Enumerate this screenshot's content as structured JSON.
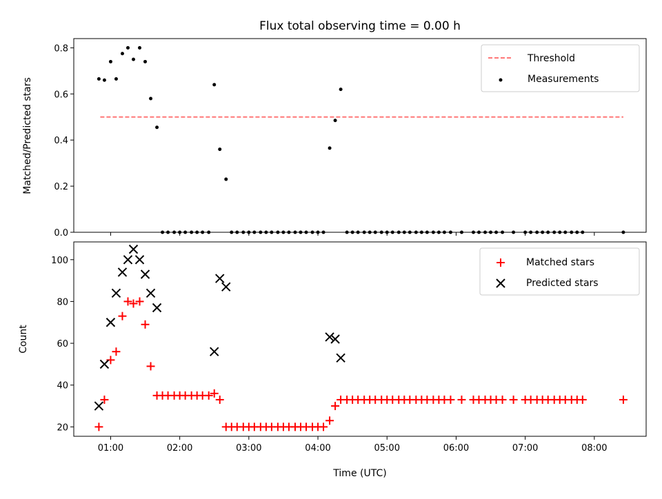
{
  "title": "Flux total observing time = 0.00 h",
  "xlabel": "Time (UTC)",
  "xticks": [
    "01:00",
    "02:00",
    "03:00",
    "04:00",
    "05:00",
    "06:00",
    "07:00",
    "08:00"
  ],
  "xticks_hours": [
    1,
    2,
    3,
    4,
    5,
    6,
    7,
    8
  ],
  "xlim": [
    0.4667,
    8.75
  ],
  "colors": {
    "threshold": "#ff7777",
    "measurement": "#000000",
    "matched": "#ff0000",
    "predicted": "#000000"
  },
  "chart_data": [
    {
      "type": "scatter",
      "ylabel": "Matched/Predicted stars",
      "ylim": [
        0,
        0.84
      ],
      "yticks": [
        "0.0",
        "0.2",
        "0.4",
        "0.6",
        "0.8"
      ],
      "yticks_values": [
        0,
        0.2,
        0.4,
        0.6,
        0.8
      ],
      "legend_position": "top-right",
      "threshold": {
        "name": "Threshold",
        "y": 0.5,
        "x_range": [
          0.85,
          8.42
        ]
      },
      "series": [
        {
          "name": "Measurements",
          "x": [
            0.83,
            0.91,
            1.0,
            1.08,
            1.17,
            1.25,
            1.33,
            1.42,
            1.5,
            1.58,
            1.67,
            1.75,
            1.83,
            1.92,
            2.0,
            2.08,
            2.17,
            2.25,
            2.33,
            2.42,
            2.5,
            2.58,
            2.67,
            2.75,
            2.83,
            2.92,
            3.0,
            3.08,
            3.17,
            3.25,
            3.33,
            3.42,
            3.5,
            3.58,
            3.67,
            3.75,
            3.83,
            3.92,
            4.0,
            4.08,
            4.17,
            4.25,
            4.33,
            4.42,
            4.5,
            4.58,
            4.67,
            4.75,
            4.83,
            4.92,
            5.0,
            5.08,
            5.17,
            5.25,
            5.33,
            5.42,
            5.5,
            5.58,
            5.67,
            5.75,
            5.83,
            5.92,
            6.08,
            6.25,
            6.33,
            6.42,
            6.5,
            6.58,
            6.67,
            6.83,
            7.0,
            7.08,
            7.17,
            7.25,
            7.33,
            7.42,
            7.5,
            7.58,
            7.67,
            7.75,
            7.83,
            8.42
          ],
          "y": [
            0.665,
            0.66,
            0.74,
            0.665,
            0.775,
            0.8,
            0.75,
            0.8,
            0.74,
            0.58,
            0.455,
            0,
            0,
            0,
            0,
            0,
            0,
            0,
            0,
            0,
            0.64,
            0.36,
            0.23,
            0,
            0,
            0,
            0,
            0,
            0,
            0,
            0,
            0,
            0,
            0,
            0,
            0,
            0,
            0,
            0,
            0,
            0.365,
            0.485,
            0.62,
            0,
            0,
            0,
            0,
            0,
            0,
            0,
            0,
            0,
            0,
            0,
            0,
            0,
            0,
            0,
            0,
            0,
            0,
            0,
            0,
            0,
            0,
            0,
            0,
            0,
            0,
            0,
            0,
            0,
            0,
            0,
            0,
            0,
            0,
            0,
            0,
            0,
            0,
            0
          ]
        }
      ]
    },
    {
      "type": "scatter",
      "ylabel": "Count",
      "ylim": [
        15.5,
        108.5
      ],
      "yticks": [
        "20",
        "40",
        "60",
        "80",
        "100"
      ],
      "yticks_values": [
        20,
        40,
        60,
        80,
        100
      ],
      "legend_position": "top-right",
      "series": [
        {
          "name": "Matched stars",
          "x": [
            0.83,
            0.91,
            1.0,
            1.08,
            1.17,
            1.25,
            1.33,
            1.42,
            1.5,
            1.58,
            1.67,
            1.75,
            1.83,
            1.92,
            2.0,
            2.08,
            2.17,
            2.25,
            2.33,
            2.42,
            2.5,
            2.58,
            2.67,
            2.75,
            2.83,
            2.92,
            3.0,
            3.08,
            3.17,
            3.25,
            3.33,
            3.42,
            3.5,
            3.58,
            3.67,
            3.75,
            3.83,
            3.92,
            4.0,
            4.08,
            4.17,
            4.25,
            4.33,
            4.42,
            4.5,
            4.58,
            4.67,
            4.75,
            4.83,
            4.92,
            5.0,
            5.08,
            5.17,
            5.25,
            5.33,
            5.42,
            5.5,
            5.58,
            5.67,
            5.75,
            5.83,
            5.92,
            6.08,
            6.25,
            6.33,
            6.42,
            6.5,
            6.58,
            6.67,
            6.83,
            7.0,
            7.08,
            7.17,
            7.25,
            7.33,
            7.42,
            7.5,
            7.58,
            7.67,
            7.75,
            7.83,
            8.42
          ],
          "y": [
            20,
            33,
            52,
            56,
            73,
            80,
            79,
            80,
            69,
            49,
            35,
            35,
            35,
            35,
            35,
            35,
            35,
            35,
            35,
            35,
            36,
            33,
            20,
            20,
            20,
            20,
            20,
            20,
            20,
            20,
            20,
            20,
            20,
            20,
            20,
            20,
            20,
            20,
            20,
            20,
            23,
            30,
            33,
            33,
            33,
            33,
            33,
            33,
            33,
            33,
            33,
            33,
            33,
            33,
            33,
            33,
            33,
            33,
            33,
            33,
            33,
            33,
            33,
            33,
            33,
            33,
            33,
            33,
            33,
            33,
            33,
            33,
            33,
            33,
            33,
            33,
            33,
            33,
            33,
            33,
            33,
            33
          ]
        },
        {
          "name": "Predicted stars",
          "x": [
            0.83,
            0.91,
            1.0,
            1.08,
            1.17,
            1.25,
            1.33,
            1.42,
            1.5,
            1.58,
            1.67,
            2.5,
            2.58,
            2.67,
            4.17,
            4.25,
            4.33
          ],
          "y": [
            30,
            50,
            70,
            84,
            94,
            100,
            105,
            100,
            93,
            84,
            77,
            56,
            91,
            87,
            63,
            62,
            53
          ]
        }
      ]
    }
  ]
}
